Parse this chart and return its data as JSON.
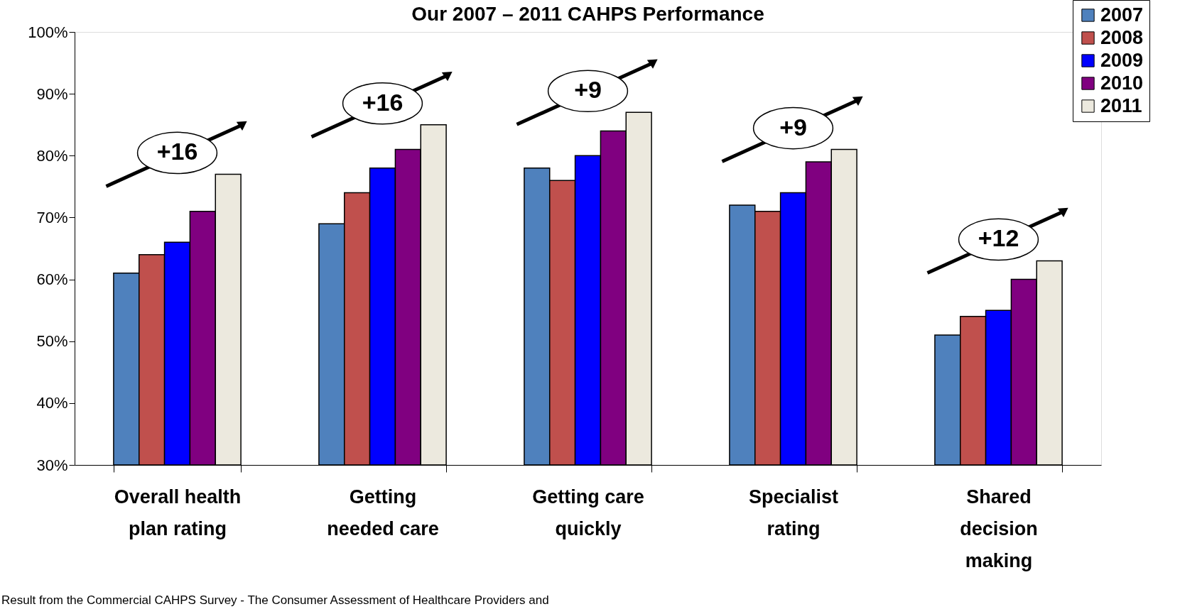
{
  "chart_data": {
    "type": "bar",
    "title": "Our 2007 – 2011 CAHPS Performance",
    "categories": [
      "Overall health\nplan rating",
      "Getting\nneeded care",
      "Getting care\nquickly",
      "Specialist\nrating",
      "Shared\ndecision\nmaking"
    ],
    "series": [
      {
        "name": "2007",
        "color": "#4f81bd",
        "values": [
          61,
          69,
          78,
          72,
          51
        ]
      },
      {
        "name": "2008",
        "color": "#c0504d",
        "values": [
          64,
          74,
          76,
          71,
          54
        ]
      },
      {
        "name": "2009",
        "color": "#0000ff",
        "values": [
          66,
          78,
          80,
          74,
          55
        ]
      },
      {
        "name": "2010",
        "color": "#800080",
        "values": [
          71,
          81,
          84,
          79,
          60
        ]
      },
      {
        "name": "2011",
        "color": "#ece9de",
        "values": [
          77,
          85,
          87,
          81,
          63
        ]
      }
    ],
    "ylim": [
      30,
      100
    ],
    "yticks": [
      {
        "value": 30,
        "label": "30%"
      },
      {
        "value": 40,
        "label": "40%"
      },
      {
        "value": 50,
        "label": "50%"
      },
      {
        "value": 60,
        "label": "60%"
      },
      {
        "value": 70,
        "label": "70%"
      },
      {
        "value": 80,
        "label": "80%"
      },
      {
        "value": 90,
        "label": "90%"
      },
      {
        "value": 100,
        "label": "100%"
      }
    ],
    "grid": false,
    "legend": "top right",
    "annotations": [
      "+16",
      "+16",
      "+9",
      "+9",
      "+12",
      "Result from the Commercial CAHPS Survey -  The Consumer Assessment of Healthcare Providers and"
    ]
  }
}
